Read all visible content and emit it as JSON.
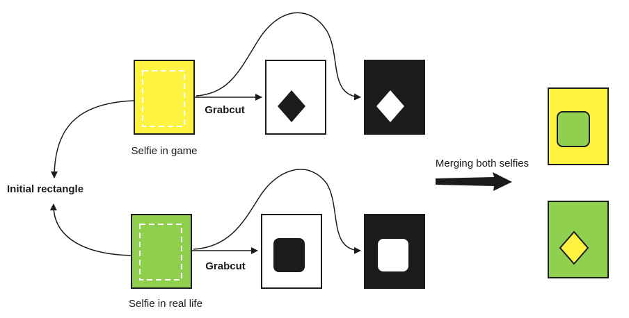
{
  "labels": {
    "selfie_game": "Selfie in game",
    "selfie_real": "Selfie in real life",
    "grabcut_top": "Grabcut",
    "grabcut_bottom": "Grabcut",
    "initial_rectangle": "Initial rectangle",
    "merging": "Merging both selfies"
  },
  "colors": {
    "yellow": "#fdf340",
    "green": "#8fd14f",
    "black": "#1b1b1b",
    "white": "#ffffff"
  }
}
